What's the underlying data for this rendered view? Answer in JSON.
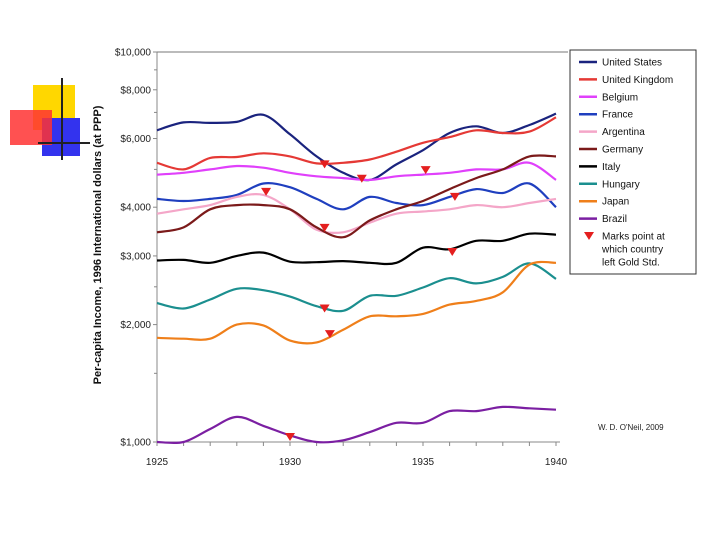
{
  "chart_data": {
    "type": "line",
    "xlabel": "",
    "ylabel": "Per-capita Income, 1996 International dollars (at PPP)",
    "y_scale": "log",
    "xlim": [
      1925,
      1940
    ],
    "ylim": [
      1000,
      10000
    ],
    "x_ticks": [
      {
        "value": 1925,
        "label": "1925"
      },
      {
        "value": 1930,
        "label": "1930"
      },
      {
        "value": 1935,
        "label": "1935"
      },
      {
        "value": 1940,
        "label": "1940"
      }
    ],
    "y_ticks": [
      {
        "value": 10000,
        "label": "$10,000"
      },
      {
        "value": 8000,
        "label": "$8,000"
      },
      {
        "value": 6000,
        "label": "$6,000"
      },
      {
        "value": 4000,
        "label": "$4,000"
      },
      {
        "value": 3000,
        "label": "$3,000"
      },
      {
        "value": 2000,
        "label": "$2,000"
      },
      {
        "value": 1000,
        "label": "$1,000"
      }
    ],
    "x": [
      1925,
      1926,
      1927,
      1928,
      1929,
      1930,
      1931,
      1932,
      1933,
      1934,
      1935,
      1936,
      1937,
      1938,
      1939,
      1940
    ],
    "series": [
      {
        "name": "United States",
        "color": "#1a237e",
        "values": [
          6300,
          6600,
          6580,
          6620,
          6900,
          6150,
          5400,
          4900,
          4700,
          5150,
          5600,
          6200,
          6450,
          6200,
          6500,
          6950
        ]
      },
      {
        "name": "United Kingdom",
        "color": "#e53935",
        "values": [
          5200,
          5000,
          5350,
          5380,
          5500,
          5400,
          5180,
          5200,
          5300,
          5550,
          5850,
          6050,
          6300,
          6200,
          6250,
          6800
        ]
      },
      {
        "name": "Belgium",
        "color": "#e040fb",
        "values": [
          4850,
          4900,
          5000,
          5100,
          5050,
          4900,
          4800,
          4750,
          4700,
          4800,
          4850,
          4900,
          5000,
          5000,
          5200,
          4700
        ]
      },
      {
        "name": "France",
        "color": "#1f3fbf",
        "values": [
          4200,
          4150,
          4200,
          4300,
          4600,
          4500,
          4200,
          3950,
          4250,
          4100,
          4050,
          4250,
          4450,
          4350,
          4600,
          4000
        ]
      },
      {
        "name": "Argentina",
        "color": "#f4a6c8",
        "values": [
          3850,
          3950,
          4050,
          4250,
          4300,
          3950,
          3500,
          3450,
          3650,
          3850,
          3900,
          3950,
          4050,
          4000,
          4100,
          4200
        ]
      },
      {
        "name": "Germany",
        "color": "#7b1a1a",
        "values": [
          3450,
          3550,
          3950,
          4050,
          4050,
          3950,
          3550,
          3350,
          3700,
          3950,
          4150,
          4450,
          4750,
          5000,
          5400,
          5400
        ]
      },
      {
        "name": "Italy",
        "color": "#000000",
        "values": [
          2920,
          2930,
          2880,
          3000,
          3060,
          2900,
          2890,
          2910,
          2880,
          2880,
          3150,
          3120,
          3280,
          3280,
          3420,
          3400
        ]
      },
      {
        "name": "Hungary",
        "color": "#1b8f8f",
        "values": [
          2270,
          2200,
          2320,
          2470,
          2450,
          2360,
          2230,
          2170,
          2370,
          2370,
          2490,
          2630,
          2550,
          2650,
          2870,
          2620
        ]
      },
      {
        "name": "Japan",
        "color": "#ef7f1a",
        "values": [
          1850,
          1840,
          1840,
          2000,
          1990,
          1820,
          1800,
          1940,
          2100,
          2100,
          2130,
          2250,
          2300,
          2420,
          2850,
          2880
        ]
      },
      {
        "name": "Brazil",
        "color": "#7b1fa2",
        "values": [
          1000,
          1000,
          1080,
          1160,
          1100,
          1040,
          1000,
          1010,
          1060,
          1120,
          1120,
          1200,
          1200,
          1230,
          1220,
          1210
        ]
      }
    ],
    "gold_standard_exits": [
      {
        "country": "United Kingdom",
        "x": 1931.3,
        "y": 5150
      },
      {
        "country": "Belgium",
        "x": 1935.1,
        "y": 4980
      },
      {
        "country": "France",
        "x": 1936.2,
        "y": 4250
      },
      {
        "country": "Argentina",
        "x": 1929.1,
        "y": 4380
      },
      {
        "country": "Germany",
        "x": 1931.3,
        "y": 3540
      },
      {
        "country": "Italy",
        "x": 1936.1,
        "y": 3070
      },
      {
        "country": "Hungary",
        "x": 1931.3,
        "y": 2200
      },
      {
        "country": "Japan",
        "x": 1931.5,
        "y": 1890
      },
      {
        "country": "Brazil",
        "x": 1930.0,
        "y": 1030
      },
      {
        "country": "United States",
        "x": 1932.7,
        "y": 4730
      }
    ],
    "legend": {
      "placement": "right",
      "marker_label": "Marks point at which country left Gold Std.",
      "marker_lines": [
        "Marks point at",
        "which country",
        "left Gold Std."
      ]
    },
    "credit": "W. D. O'Neil, 2009"
  }
}
